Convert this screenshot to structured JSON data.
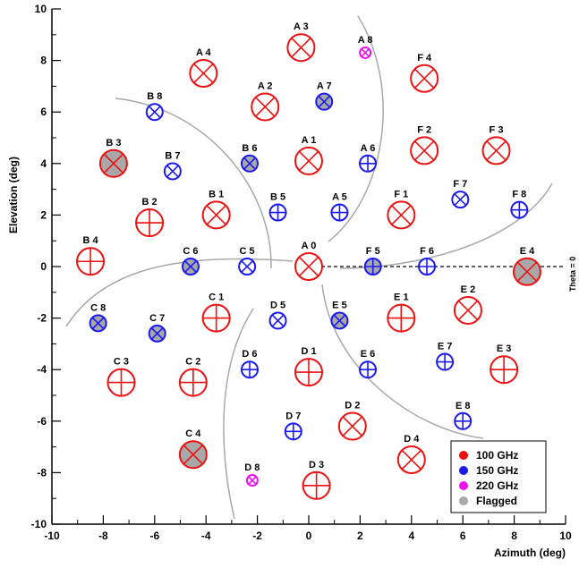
{
  "chart_data": {
    "type": "scatter",
    "xlabel": "Azimuth (deg)",
    "ylabel": "Elevation (deg)",
    "xlim": [
      -10,
      10
    ],
    "ylim": [
      -10,
      10
    ],
    "x_ticks": [
      -10,
      -8,
      -6,
      -4,
      -2,
      0,
      2,
      4,
      6,
      8,
      10
    ],
    "y_ticks": [
      -10,
      -8,
      -6,
      -4,
      -2,
      0,
      2,
      4,
      6,
      8,
      10
    ],
    "grid": false,
    "legend_position": "bottom-right",
    "reference_line": {
      "label": "Theta = 0",
      "y": 0,
      "x_from": 0,
      "x_to": 10,
      "style": "dashed"
    },
    "colors": {
      "100 GHz": "#ee1111",
      "150 GHz": "#1a1aee",
      "220 GHz": "#ee11ee",
      "Flagged": "#a8a8a8"
    },
    "legend": [
      {
        "label": "100 GHz",
        "color": "#ee1111"
      },
      {
        "label": "150 GHz",
        "color": "#1a1aee"
      },
      {
        "label": "220 GHz",
        "color": "#ee11ee"
      },
      {
        "label": "Flagged",
        "color": "#a8a8a8"
      }
    ],
    "detectors": [
      {
        "name": "A 0",
        "x": 0.0,
        "y": 0.0,
        "band": "100 GHz",
        "flagged": false,
        "mark": "x"
      },
      {
        "name": "A 1",
        "x": 0.0,
        "y": 4.1,
        "band": "100 GHz",
        "flagged": false,
        "mark": "x"
      },
      {
        "name": "A 2",
        "x": -1.7,
        "y": 6.2,
        "band": "100 GHz",
        "flagged": false,
        "mark": "x"
      },
      {
        "name": "A 3",
        "x": -0.3,
        "y": 8.5,
        "band": "100 GHz",
        "flagged": false,
        "mark": "x"
      },
      {
        "name": "A 4",
        "x": -4.1,
        "y": 7.5,
        "band": "100 GHz",
        "flagged": false,
        "mark": "x"
      },
      {
        "name": "A 5",
        "x": 1.2,
        "y": 2.1,
        "band": "150 GHz",
        "flagged": false,
        "mark": "+"
      },
      {
        "name": "A 6",
        "x": 2.3,
        "y": 4.0,
        "band": "150 GHz",
        "flagged": false,
        "mark": "+"
      },
      {
        "name": "A 7",
        "x": 0.6,
        "y": 6.4,
        "band": "150 GHz",
        "flagged": true,
        "mark": "x"
      },
      {
        "name": "A 8",
        "x": 2.2,
        "y": 8.3,
        "band": "220 GHz",
        "flagged": false,
        "mark": "x"
      },
      {
        "name": "B 1",
        "x": -3.6,
        "y": 2.0,
        "band": "100 GHz",
        "flagged": false,
        "mark": "x"
      },
      {
        "name": "B 2",
        "x": -6.2,
        "y": 1.7,
        "band": "100 GHz",
        "flagged": false,
        "mark": "+"
      },
      {
        "name": "B 3",
        "x": -7.6,
        "y": 4.0,
        "band": "100 GHz",
        "flagged": true,
        "mark": "x"
      },
      {
        "name": "B 4",
        "x": -8.5,
        "y": 0.2,
        "band": "100 GHz",
        "flagged": false,
        "mark": "+"
      },
      {
        "name": "B 5",
        "x": -1.2,
        "y": 2.1,
        "band": "150 GHz",
        "flagged": false,
        "mark": "+"
      },
      {
        "name": "B 6",
        "x": -2.3,
        "y": 4.0,
        "band": "150 GHz",
        "flagged": true,
        "mark": "x"
      },
      {
        "name": "B 7",
        "x": -5.3,
        "y": 3.7,
        "band": "150 GHz",
        "flagged": false,
        "mark": "x"
      },
      {
        "name": "B 8",
        "x": -6.0,
        "y": 6.0,
        "band": "150 GHz",
        "flagged": false,
        "mark": "x"
      },
      {
        "name": "C 1",
        "x": -3.6,
        "y": -2.0,
        "band": "100 GHz",
        "flagged": false,
        "mark": "+"
      },
      {
        "name": "C 2",
        "x": -4.5,
        "y": -4.5,
        "band": "100 GHz",
        "flagged": false,
        "mark": "+"
      },
      {
        "name": "C 3",
        "x": -7.3,
        "y": -4.5,
        "band": "100 GHz",
        "flagged": false,
        "mark": "+"
      },
      {
        "name": "C 4",
        "x": -4.5,
        "y": -7.3,
        "band": "100 GHz",
        "flagged": true,
        "mark": "x"
      },
      {
        "name": "C 5",
        "x": -2.4,
        "y": 0.0,
        "band": "150 GHz",
        "flagged": false,
        "mark": "x"
      },
      {
        "name": "C 6",
        "x": -4.6,
        "y": 0.0,
        "band": "150 GHz",
        "flagged": true,
        "mark": "x"
      },
      {
        "name": "C 7",
        "x": -5.9,
        "y": -2.6,
        "band": "150 GHz",
        "flagged": true,
        "mark": "x"
      },
      {
        "name": "C 8",
        "x": -8.2,
        "y": -2.2,
        "band": "150 GHz",
        "flagged": true,
        "mark": "x"
      },
      {
        "name": "D 1",
        "x": 0.0,
        "y": -4.1,
        "band": "100 GHz",
        "flagged": false,
        "mark": "+"
      },
      {
        "name": "D 2",
        "x": 1.7,
        "y": -6.2,
        "band": "100 GHz",
        "flagged": false,
        "mark": "x"
      },
      {
        "name": "D 3",
        "x": 0.3,
        "y": -8.5,
        "band": "100 GHz",
        "flagged": false,
        "mark": "+"
      },
      {
        "name": "D 4",
        "x": 4.0,
        "y": -7.5,
        "band": "100 GHz",
        "flagged": false,
        "mark": "x"
      },
      {
        "name": "D 5",
        "x": -1.2,
        "y": -2.1,
        "band": "150 GHz",
        "flagged": false,
        "mark": "x"
      },
      {
        "name": "D 6",
        "x": -2.3,
        "y": -4.0,
        "band": "150 GHz",
        "flagged": false,
        "mark": "+"
      },
      {
        "name": "D 7",
        "x": -0.6,
        "y": -6.4,
        "band": "150 GHz",
        "flagged": false,
        "mark": "+"
      },
      {
        "name": "D 8",
        "x": -2.2,
        "y": -8.3,
        "band": "220 GHz",
        "flagged": false,
        "mark": "x"
      },
      {
        "name": "E 1",
        "x": 3.6,
        "y": -2.0,
        "band": "100 GHz",
        "flagged": false,
        "mark": "+"
      },
      {
        "name": "E 2",
        "x": 6.2,
        "y": -1.7,
        "band": "100 GHz",
        "flagged": false,
        "mark": "x"
      },
      {
        "name": "E 3",
        "x": 7.6,
        "y": -4.0,
        "band": "100 GHz",
        "flagged": false,
        "mark": "+"
      },
      {
        "name": "E 4",
        "x": 8.5,
        "y": -0.2,
        "band": "100 GHz",
        "flagged": true,
        "mark": "x"
      },
      {
        "name": "E 5",
        "x": 1.2,
        "y": -2.1,
        "band": "150 GHz",
        "flagged": true,
        "mark": "x"
      },
      {
        "name": "E 6",
        "x": 2.3,
        "y": -4.0,
        "band": "150 GHz",
        "flagged": false,
        "mark": "+"
      },
      {
        "name": "E 7",
        "x": 5.3,
        "y": -3.7,
        "band": "150 GHz",
        "flagged": false,
        "mark": "+"
      },
      {
        "name": "E 8",
        "x": 6.0,
        "y": -6.0,
        "band": "150 GHz",
        "flagged": false,
        "mark": "+"
      },
      {
        "name": "F 1",
        "x": 3.6,
        "y": 2.0,
        "band": "100 GHz",
        "flagged": false,
        "mark": "x"
      },
      {
        "name": "F 2",
        "x": 4.5,
        "y": 4.5,
        "band": "100 GHz",
        "flagged": false,
        "mark": "x"
      },
      {
        "name": "F 3",
        "x": 7.3,
        "y": 4.5,
        "band": "100 GHz",
        "flagged": false,
        "mark": "x"
      },
      {
        "name": "F 4",
        "x": 4.5,
        "y": 7.3,
        "band": "100 GHz",
        "flagged": false,
        "mark": "x"
      },
      {
        "name": "F 5",
        "x": 2.5,
        "y": 0.0,
        "band": "150 GHz",
        "flagged": true,
        "mark": "+"
      },
      {
        "name": "F 6",
        "x": 4.6,
        "y": 0.0,
        "band": "150 GHz",
        "flagged": false,
        "mark": "+"
      },
      {
        "name": "F 7",
        "x": 5.9,
        "y": 2.6,
        "band": "150 GHz",
        "flagged": false,
        "mark": "x"
      },
      {
        "name": "F 8",
        "x": 8.2,
        "y": 2.2,
        "band": "150 GHz",
        "flagged": false,
        "mark": "+"
      }
    ]
  }
}
